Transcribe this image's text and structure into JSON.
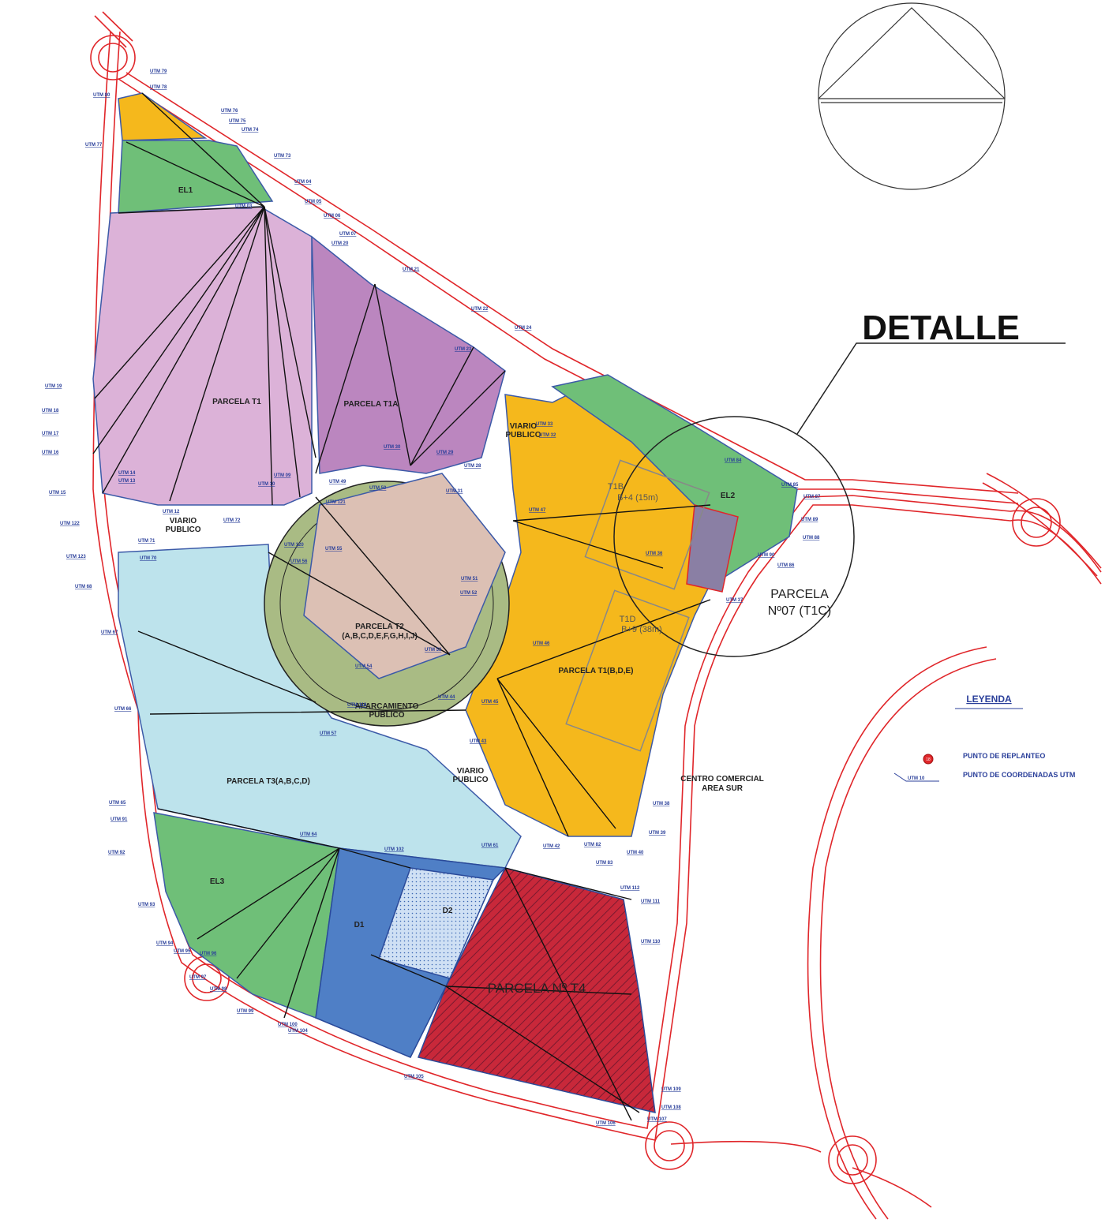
{
  "title": "DETALLE",
  "parcels": [
    "PARCELA T1",
    "PARCELA T1A",
    "PARCELA T2",
    "(A,B,C,D,E,F,G,H,I,J)",
    "PARCELA T1(B,D,E)",
    "PARCELA T3(A,B,C,D)",
    "PARCELA Nº T4",
    "EL1",
    "EL2",
    "EL3",
    "D1",
    "D2"
  ],
  "zones": [
    "VIARIO",
    "PUBLICO",
    "VIARIO",
    "PUBLICO",
    "VIARIO",
    "PUBLICO",
    "APARCAMIENTO",
    "PUBLICO"
  ],
  "buildings": [
    "T1B",
    "B+4 (15m)",
    "T1D",
    "B+9 (38m)"
  ],
  "detail_label": [
    "PARCELA",
    "Nº07 (T1C)"
  ],
  "other": [
    "CENTRO COMERCIAL",
    "AREA SUR"
  ],
  "legend": {
    "title": "LEYENDA",
    "marker": "18",
    "items": [
      "PUNTO DE REPLANTEO",
      "PUNTO DE COORDENADAS UTM"
    ],
    "sample": "UTM 10"
  },
  "utm_labels": [
    "UTM 79",
    "UTM 78",
    "UTM 80",
    "UTM 76",
    "UTM 75",
    "UTM 74",
    "UTM 77",
    "UTM 73",
    "UTM 04",
    "UTM 05",
    "UTM 03",
    "UTM 06",
    "UTM 07",
    "UTM 20",
    "UTM 21",
    "UTM 22",
    "UTM 24",
    "UTM 23",
    "UTM 19",
    "UTM 18",
    "UTM 17",
    "UTM 16",
    "UTM 15",
    "UTM 14",
    "UTM 13",
    "UTM 122",
    "UTM 123",
    "UTM 68",
    "UTM 70",
    "UTM 67",
    "UTM 66",
    "UTM 65",
    "UTM 91",
    "UTM 92",
    "UTM 93",
    "UTM 94",
    "UTM 95",
    "UTM 96",
    "UTM 97",
    "UTM 98",
    "UTM 99",
    "UTM 100",
    "UTM 104",
    "UTM 105",
    "UTM 106",
    "UTM 107",
    "UTM 108",
    "UTM 109",
    "UTM 110",
    "UTM 111",
    "UTM 112",
    "UTM 38",
    "UTM 39",
    "UTM 40",
    "UTM 82",
    "UTM 83",
    "UTM 84",
    "UTM 85",
    "UTM 87",
    "UTM 89",
    "UTM 88",
    "UTM 86",
    "UTM 90",
    "UTM 37",
    "UTM 36",
    "UTM 47",
    "UTM 46",
    "UTM 45",
    "UTM 44",
    "UTM 43",
    "UTM 42",
    "UTM 61",
    "UTM 64",
    "UTM 102",
    "UTM 57",
    "UTM 118",
    "UTM 54",
    "UTM 53",
    "UTM 52",
    "UTM 51",
    "UTM 55",
    "UTM 56",
    "UTM 30",
    "UTM 29",
    "UTM 28",
    "UTM 31",
    "UTM 32",
    "UTM 33",
    "UTM 09",
    "UTM 10",
    "UTM 12",
    "UTM 71",
    "UTM 72",
    "UTM 120",
    "UTM 121",
    "UTM 49",
    "UTM 50"
  ]
}
